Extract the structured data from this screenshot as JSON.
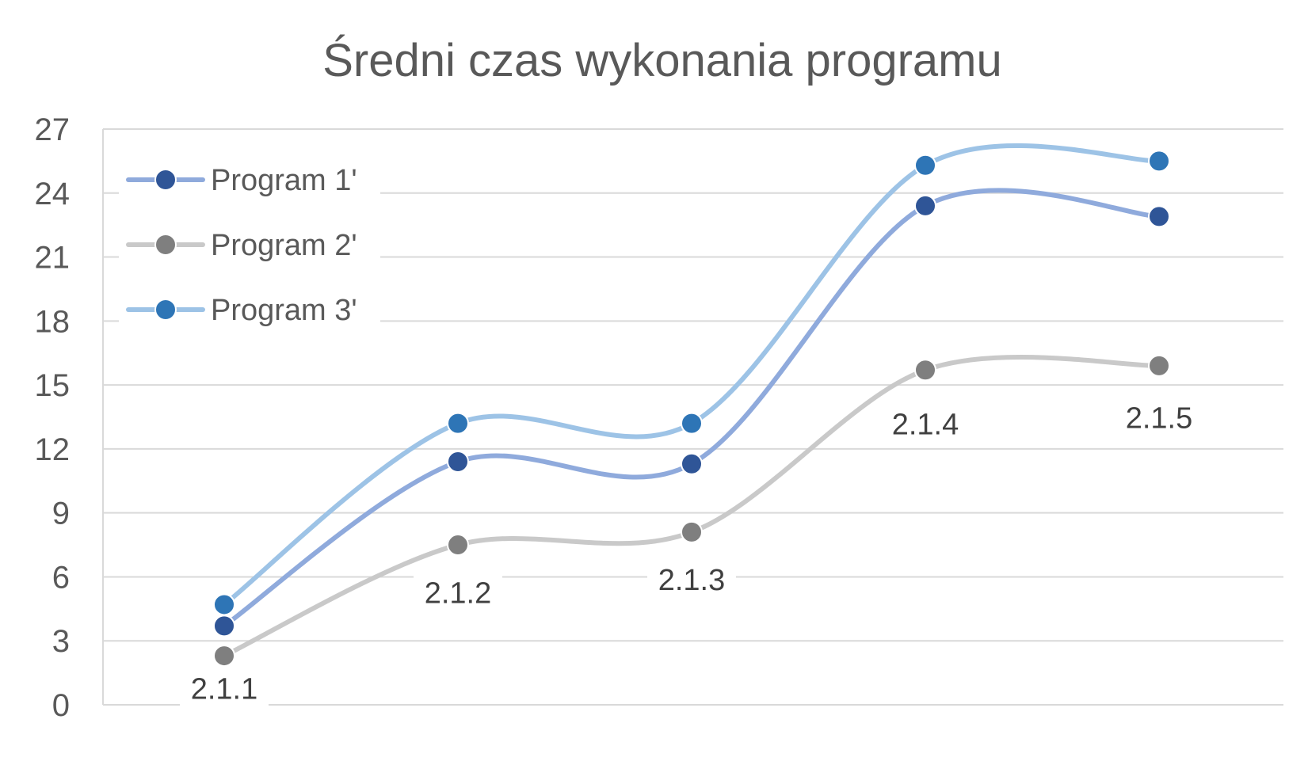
{
  "chart_data": {
    "type": "line",
    "title": "Średni czas wykonania programu",
    "xlabel": "",
    "ylabel": "",
    "categories": [
      "2.1.1",
      "2.1.2",
      "2.1.3",
      "2.1.4",
      "2.1.5"
    ],
    "ylim": [
      0,
      27
    ],
    "yticks": [
      0,
      3,
      6,
      9,
      12,
      15,
      18,
      21,
      24,
      27
    ],
    "grid": true,
    "smooth": true,
    "legend_position": "top-left",
    "series": [
      {
        "name": "Program 1'",
        "values": [
          3.7,
          11.4,
          11.3,
          23.4,
          22.9
        ],
        "line_color": "#8FAADC",
        "marker_color": "#2F5597"
      },
      {
        "name": "Program 2'",
        "values": [
          2.3,
          7.5,
          8.1,
          15.7,
          15.9
        ],
        "line_color": "#C9C9C9",
        "marker_color": "#7F7F7F"
      },
      {
        "name": "Program 3'",
        "values": [
          4.7,
          13.2,
          13.2,
          25.3,
          25.5
        ],
        "line_color": "#9DC3E6",
        "marker_color": "#2E75B6"
      }
    ],
    "category_label_values": [
      0.8,
      5.3,
      5.9,
      13.2,
      13.5
    ]
  }
}
